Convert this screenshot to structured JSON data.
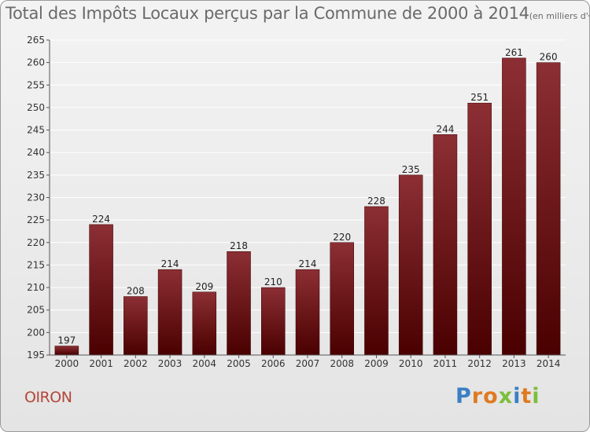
{
  "chart_data": {
    "type": "bar",
    "title": "Total des Impôts Locaux perçus par la Commune de 2000 à 2014",
    "unit_label": "(en milliers d'€)",
    "categories": [
      "2000",
      "2001",
      "2002",
      "2003",
      "2004",
      "2005",
      "2006",
      "2007",
      "2008",
      "2009",
      "2010",
      "2011",
      "2012",
      "2013",
      "2014"
    ],
    "values": [
      197,
      224,
      208,
      214,
      209,
      218,
      210,
      214,
      220,
      228,
      235,
      244,
      251,
      261,
      260
    ],
    "ylim": [
      195,
      265
    ],
    "yticks": [
      195,
      200,
      205,
      210,
      215,
      220,
      225,
      230,
      235,
      240,
      245,
      250,
      255,
      260,
      265
    ],
    "grid": true,
    "xlabel": "",
    "ylabel": ""
  },
  "footer": {
    "commune": "OIRON",
    "brand": "Proxiti",
    "brand_letters": [
      "P",
      "r",
      "o",
      "x",
      "i",
      "t",
      "i"
    ]
  },
  "colors": {
    "bar_top": "#8c2f34",
    "bar_bottom": "#4a0000",
    "grid": "#ffffff",
    "commune": "#b4453b",
    "brand_letters": [
      "#3a7fc4",
      "#e07a1f",
      "#e07a1f",
      "#7bbf3a",
      "#3a7fc4",
      "#e07a1f",
      "#7bbf3a"
    ]
  }
}
